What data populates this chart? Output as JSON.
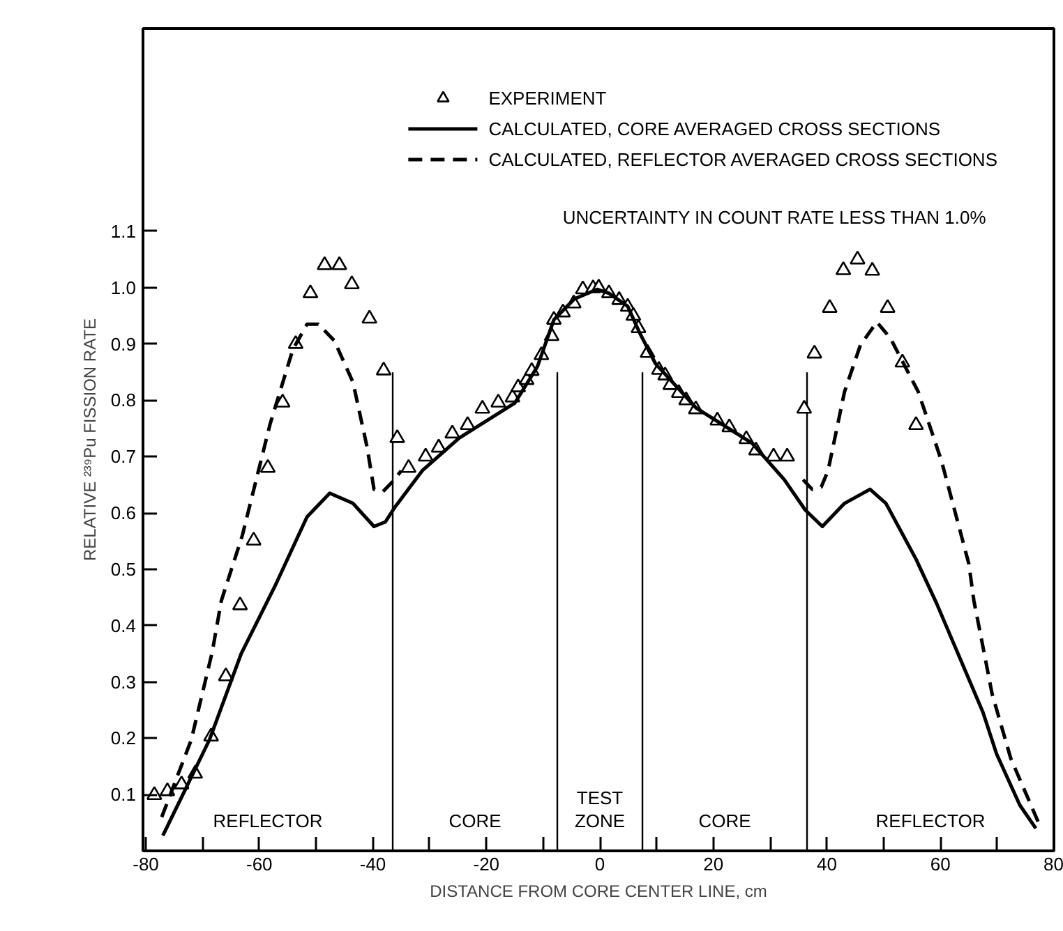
{
  "chart_data": {
    "type": "line",
    "xlabel": "DISTANCE FROM CORE CENTER LINE, cm",
    "ylabel": "RELATIVE ²³⁹Pu FISSION RATE",
    "xlim": [
      -80.5,
      80
    ],
    "ylim": [
      0,
      1.46
    ],
    "xticks": [
      -80,
      {
        "value": -70,
        "label": null
      },
      -60,
      {
        "value": -50,
        "label": null
      },
      -40,
      {
        "value": -30,
        "label": null
      },
      -20,
      {
        "value": -10,
        "label": null
      },
      0,
      {
        "value": 10,
        "label": null
      },
      20,
      {
        "value": 30,
        "label": null
      },
      40,
      {
        "value": 50,
        "label": null
      },
      60,
      {
        "value": 70,
        "label": null
      },
      80
    ],
    "yticks": [
      0.1,
      0.2,
      0.3,
      0.4,
      0.5,
      0.6,
      0.7,
      0.8,
      0.9,
      {
        "value": 1.0,
        "label": "1.0"
      },
      1.1
    ],
    "grid": false,
    "legend": "top right",
    "series": [
      {
        "name": "EXPERIMENT",
        "type": "scatter",
        "marker": "triangle",
        "color": "#000000",
        "x": [
          -78.5,
          -76.2,
          -73.7,
          -71.3,
          -68.5,
          -65.9,
          -63.4,
          -61,
          -58.5,
          -55.9,
          -53.6,
          -51,
          -48.5,
          -45.9,
          -43.7,
          -40.6,
          -38.1,
          -35.7,
          -33.7,
          -30.7,
          -28.4,
          -26,
          -23.3,
          -20.7,
          -17.9,
          -15.4,
          -14.4,
          -12.9,
          -12,
          -10.3,
          -8.5,
          -8.1,
          -6.5,
          -4.6,
          -3.0,
          -1.2,
          -0.2,
          1.6,
          3.4,
          4.9,
          5.9,
          6.8,
          8.4,
          10.4,
          11.5,
          12.4,
          13.9,
          15.2,
          16.9,
          20.7,
          22.8,
          25.8,
          27.5,
          30.6,
          33,
          36,
          37.8,
          40.5,
          42.9,
          45.4,
          48,
          50.7,
          53.3,
          55.7
        ],
        "values": [
          0.099,
          0.106,
          0.118,
          0.137,
          0.203,
          0.31,
          0.436,
          0.551,
          0.68,
          0.796,
          0.9,
          0.99,
          1.04,
          1.04,
          1.006,
          0.945,
          0.853,
          0.733,
          0.68,
          0.7,
          0.716,
          0.741,
          0.756,
          0.785,
          0.796,
          0.805,
          0.823,
          0.836,
          0.852,
          0.88,
          0.914,
          0.943,
          0.956,
          0.972,
          0.997,
          0.999,
          1.0,
          0.99,
          0.978,
          0.966,
          0.95,
          0.928,
          0.884,
          0.854,
          0.844,
          0.827,
          0.813,
          0.8,
          0.784,
          0.764,
          0.752,
          0.731,
          0.711,
          0.7,
          0.7,
          0.785,
          0.883,
          0.964,
          1.031,
          1.05,
          1.03,
          0.964,
          0.867,
          0.756
        ]
      },
      {
        "name": "CALCULATED, CORE AVERAGED CROSS SECTIONS",
        "type": "line",
        "line_style": "solid",
        "color": "#000000",
        "x": [
          -77,
          -68.8,
          -63.2,
          -57.3,
          -51.6,
          -47.6,
          -43.5,
          -39.8,
          -37.8,
          -36.2,
          -31.3,
          -24.8,
          -15,
          -11,
          -8.1,
          -4.5,
          -0.5,
          1.6,
          4.9,
          6.9,
          9.8,
          17,
          26.8,
          32.5,
          36.2,
          39.2,
          43.1,
          47.6,
          50.4,
          55.7,
          59.3,
          62.6,
          67.5,
          69.9,
          74,
          76.8
        ],
        "values": [
          0.027,
          0.197,
          0.35,
          0.469,
          0.593,
          0.635,
          0.617,
          0.576,
          0.584,
          0.609,
          0.675,
          0.733,
          0.795,
          0.86,
          0.943,
          0.98,
          0.997,
          0.99,
          0.967,
          0.922,
          0.865,
          0.786,
          0.724,
          0.659,
          0.605,
          0.576,
          0.617,
          0.642,
          0.617,
          0.518,
          0.44,
          0.362,
          0.246,
          0.172,
          0.081,
          0.04
        ]
      },
      {
        "name": "CALCULATED, REFLECTOR AVERAGED CROSS SECTIONS",
        "type": "line",
        "line_style": "dashed",
        "color": "#000000",
        "x": [
          -77.2,
          -72,
          -68.3,
          -66.7,
          -63,
          -58.1,
          -54.1,
          -51.6,
          -49.6,
          -46.8,
          -43.5,
          -41,
          -39.8,
          -38.2,
          -36.2,
          -35,
          0,
          35.8,
          37.4,
          39,
          40.2,
          43.1,
          45.9,
          48.8,
          51.2,
          56.1,
          60.2,
          65,
          65.9,
          67.5,
          69.1,
          72.4,
          77.2
        ],
        "values": [
          0.06,
          0.197,
          0.353,
          0.444,
          0.56,
          0.758,
          0.89,
          0.935,
          0.935,
          0.906,
          0.832,
          0.716,
          0.642,
          0.638,
          0.659,
          0.675,
          null,
          0.659,
          0.642,
          0.646,
          0.675,
          0.815,
          0.898,
          0.939,
          0.91,
          0.815,
          0.692,
          0.51,
          0.444,
          0.362,
          0.279,
          0.164,
          0.052
        ]
      }
    ],
    "ref_lines": [
      {
        "axis": "x",
        "value": -36.5,
        "color": "#000000"
      },
      {
        "axis": "x",
        "value": -7.5,
        "color": "#000000"
      },
      {
        "axis": "x",
        "value": 7.5,
        "color": "#000000"
      },
      {
        "axis": "x",
        "value": 36.5,
        "color": "#000000"
      }
    ],
    "annotations": [
      "UNCERTAINTY IN COUNT RATE LESS THAN 1.0%",
      "REFLECTOR",
      "CORE",
      "TEST\nZONE",
      "CORE",
      "REFLECTOR"
    ]
  }
}
